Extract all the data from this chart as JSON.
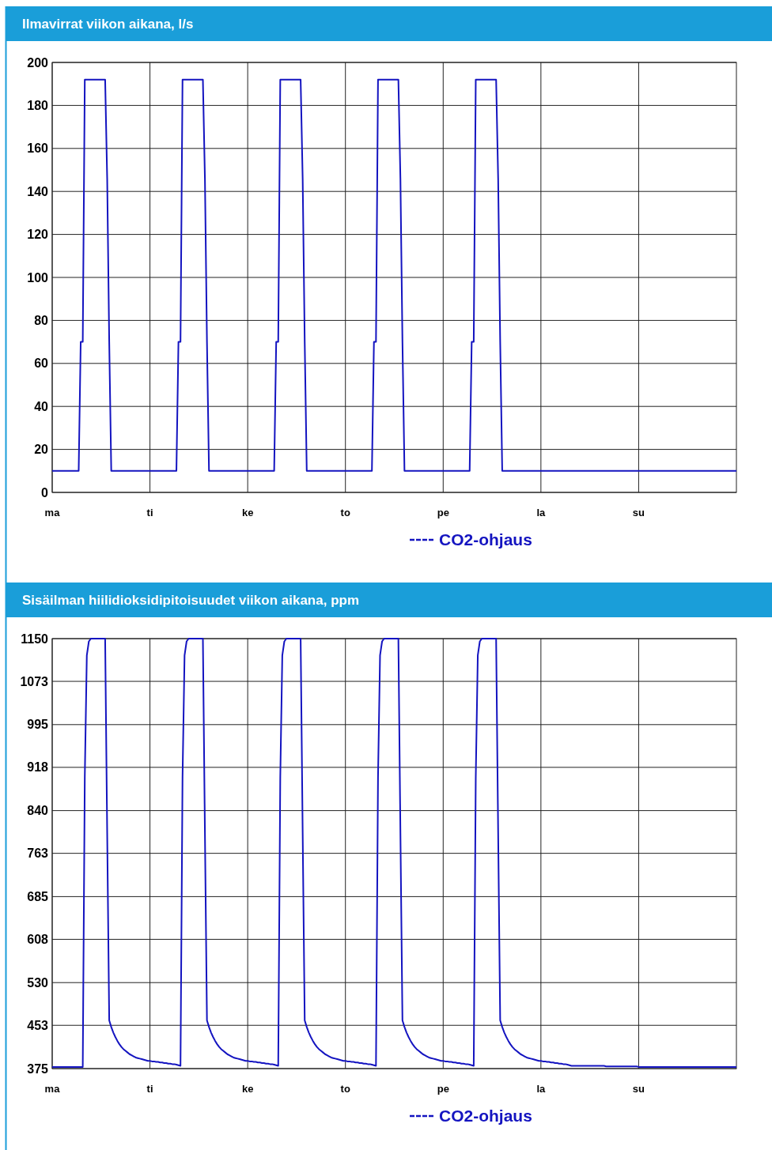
{
  "chart_data": [
    {
      "type": "line",
      "title": "Ilmavirrat viikon aikana, l/s",
      "ylim": [
        0,
        200
      ],
      "yticks": [
        0,
        20,
        40,
        60,
        80,
        100,
        120,
        140,
        160,
        180,
        200
      ],
      "categories": [
        "ma",
        null,
        null,
        null,
        null,
        null,
        null,
        null,
        null,
        null,
        null,
        null,
        null,
        null,
        null,
        null,
        null,
        null,
        null,
        null,
        null,
        null,
        null,
        null,
        null,
        null,
        null,
        null,
        null,
        null,
        null,
        null,
        null,
        null,
        null,
        null,
        null,
        null,
        null,
        null,
        null,
        null,
        null,
        null,
        null,
        null,
        null,
        null,
        "ti",
        null,
        null,
        null,
        null,
        null,
        null,
        null,
        null,
        null,
        null,
        null,
        null,
        null,
        null,
        null,
        null,
        null,
        null,
        null,
        null,
        null,
        null,
        null,
        null,
        null,
        null,
        null,
        null,
        null,
        null,
        null,
        null,
        null,
        null,
        null,
        null,
        null,
        null,
        null,
        null,
        null,
        null,
        null,
        null,
        null,
        null,
        null,
        "ke",
        null,
        null,
        null,
        null,
        null,
        null,
        null,
        null,
        null,
        null,
        null,
        null,
        null,
        null,
        null,
        null,
        null,
        null,
        null,
        null,
        null,
        null,
        null,
        null,
        null,
        null,
        null,
        null,
        null,
        null,
        null,
        null,
        null,
        null,
        null,
        null,
        null,
        null,
        null,
        null,
        null,
        null,
        null,
        null,
        null,
        null,
        null,
        "to",
        null,
        null,
        null,
        null,
        null,
        null,
        null,
        null,
        null,
        null,
        null,
        null,
        null,
        null,
        null,
        null,
        null,
        null,
        null,
        null,
        null,
        null,
        null,
        null,
        null,
        null,
        null,
        null,
        null,
        null,
        null,
        null,
        null,
        null,
        null,
        null,
        null,
        null,
        null,
        null,
        null,
        null,
        null,
        null,
        null,
        null,
        null,
        "pe",
        null,
        null,
        null,
        null,
        null,
        null,
        null,
        null,
        null,
        null,
        null,
        null,
        null,
        null,
        null,
        null,
        null,
        null,
        null,
        null,
        null,
        null,
        null,
        null,
        null,
        null,
        null,
        null,
        null,
        null,
        null,
        null,
        null,
        null,
        null,
        null,
        null,
        null,
        null,
        null,
        null,
        null,
        null,
        null,
        null,
        null,
        null,
        "la",
        null,
        null,
        null,
        null,
        null,
        null,
        null,
        null,
        null,
        null,
        null,
        null,
        null,
        null,
        null,
        null,
        null,
        null,
        null,
        null,
        null,
        null,
        null,
        null,
        null,
        null,
        null,
        null,
        null,
        null,
        null,
        null,
        null,
        null,
        null,
        null,
        null,
        null,
        null,
        null,
        null,
        null,
        null,
        null,
        null,
        null,
        null,
        "su",
        null,
        null,
        null,
        null,
        null,
        null,
        null,
        null,
        null,
        null,
        null,
        null,
        null,
        null,
        null,
        null,
        null,
        null,
        null,
        null,
        null,
        null,
        null,
        null,
        null,
        null,
        null,
        null,
        null,
        null,
        null,
        null,
        null,
        null,
        null,
        null,
        null,
        null,
        null,
        null,
        null,
        null,
        null,
        null,
        null,
        null,
        null,
        null
      ],
      "grid": true,
      "legend": "bottom",
      "line_style": "solid",
      "marker": "none",
      "series": [
        {
          "name": "CO2-ohjaus",
          "color": "#1414c0",
          "values": [
            10,
            10,
            10,
            10,
            10,
            10,
            10,
            10,
            10,
            10,
            10,
            10,
            10,
            10,
            70,
            70,
            192,
            192,
            192,
            192,
            192,
            192,
            192,
            192,
            192,
            192,
            192,
            146,
            70,
            10,
            10,
            10,
            10,
            10,
            10,
            10,
            10,
            10,
            10,
            10,
            10,
            10,
            10,
            10,
            10,
            10,
            10,
            10,
            10,
            10,
            10,
            10,
            10,
            10,
            10,
            10,
            10,
            10,
            10,
            10,
            10,
            10,
            70,
            70,
            192,
            192,
            192,
            192,
            192,
            192,
            192,
            192,
            192,
            192,
            192,
            146,
            70,
            10,
            10,
            10,
            10,
            10,
            10,
            10,
            10,
            10,
            10,
            10,
            10,
            10,
            10,
            10,
            10,
            10,
            10,
            10,
            10,
            10,
            10,
            10,
            10,
            10,
            10,
            10,
            10,
            10,
            10,
            10,
            10,
            10,
            70,
            70,
            192,
            192,
            192,
            192,
            192,
            192,
            192,
            192,
            192,
            192,
            192,
            146,
            70,
            10,
            10,
            10,
            10,
            10,
            10,
            10,
            10,
            10,
            10,
            10,
            10,
            10,
            10,
            10,
            10,
            10,
            10,
            10,
            10,
            10,
            10,
            10,
            10,
            10,
            10,
            10,
            10,
            10,
            10,
            10,
            10,
            10,
            70,
            70,
            192,
            192,
            192,
            192,
            192,
            192,
            192,
            192,
            192,
            192,
            192,
            146,
            70,
            10,
            10,
            10,
            10,
            10,
            10,
            10,
            10,
            10,
            10,
            10,
            10,
            10,
            10,
            10,
            10,
            10,
            10,
            10,
            10,
            10,
            10,
            10,
            10,
            10,
            10,
            10,
            10,
            10,
            10,
            10,
            10,
            10,
            70,
            70,
            192,
            192,
            192,
            192,
            192,
            192,
            192,
            192,
            192,
            192,
            192,
            146,
            70,
            10,
            10,
            10,
            10,
            10,
            10,
            10,
            10,
            10,
            10,
            10,
            10,
            10,
            10,
            10,
            10,
            10,
            10,
            10,
            10,
            10,
            10,
            10,
            10,
            10,
            10,
            10,
            10,
            10,
            10,
            10,
            10,
            10,
            10,
            10,
            10,
            10,
            10,
            10,
            10,
            10,
            10,
            10,
            10,
            10,
            10,
            10,
            10,
            10,
            10,
            10,
            10,
            10,
            10,
            10,
            10,
            10,
            10,
            10,
            10,
            10,
            10,
            10,
            10,
            10,
            10,
            10,
            10,
            10,
            10,
            10,
            10,
            10,
            10,
            10,
            10,
            10,
            10,
            10,
            10,
            10,
            10,
            10,
            10,
            10,
            10,
            10,
            10,
            10,
            10,
            10,
            10,
            10,
            10,
            10,
            10,
            10,
            10,
            10,
            10,
            10,
            10,
            10,
            10,
            10,
            10,
            10,
            10,
            10,
            10,
            10,
            10,
            10,
            10,
            10,
            10
          ]
        }
      ]
    },
    {
      "type": "line",
      "title": "Sisäilman hiilidioksidipitoisuudet viikon aikana, ppm",
      "ylim": [
        375,
        1150
      ],
      "yticks": [
        375,
        453,
        530,
        608,
        685,
        763,
        840,
        918,
        995,
        1073,
        1150
      ],
      "categories": [
        "ma",
        null,
        null,
        null,
        null,
        null,
        null,
        null,
        null,
        null,
        null,
        null,
        null,
        null,
        null,
        null,
        null,
        null,
        null,
        null,
        null,
        null,
        null,
        null,
        null,
        null,
        null,
        null,
        null,
        null,
        null,
        null,
        null,
        null,
        null,
        null,
        null,
        null,
        null,
        null,
        null,
        null,
        null,
        null,
        null,
        null,
        null,
        null,
        "ti",
        null,
        null,
        null,
        null,
        null,
        null,
        null,
        null,
        null,
        null,
        null,
        null,
        null,
        null,
        null,
        null,
        null,
        null,
        null,
        null,
        null,
        null,
        null,
        null,
        null,
        null,
        null,
        null,
        null,
        null,
        null,
        null,
        null,
        null,
        null,
        null,
        null,
        null,
        null,
        null,
        null,
        null,
        null,
        null,
        null,
        null,
        null,
        "ke",
        null,
        null,
        null,
        null,
        null,
        null,
        null,
        null,
        null,
        null,
        null,
        null,
        null,
        null,
        null,
        null,
        null,
        null,
        null,
        null,
        null,
        null,
        null,
        null,
        null,
        null,
        null,
        null,
        null,
        null,
        null,
        null,
        null,
        null,
        null,
        null,
        null,
        null,
        null,
        null,
        null,
        null,
        null,
        null,
        null,
        null,
        null,
        "to",
        null,
        null,
        null,
        null,
        null,
        null,
        null,
        null,
        null,
        null,
        null,
        null,
        null,
        null,
        null,
        null,
        null,
        null,
        null,
        null,
        null,
        null,
        null,
        null,
        null,
        null,
        null,
        null,
        null,
        null,
        null,
        null,
        null,
        null,
        null,
        null,
        null,
        null,
        null,
        null,
        null,
        null,
        null,
        null,
        null,
        null,
        null,
        "pe",
        null,
        null,
        null,
        null,
        null,
        null,
        null,
        null,
        null,
        null,
        null,
        null,
        null,
        null,
        null,
        null,
        null,
        null,
        null,
        null,
        null,
        null,
        null,
        null,
        null,
        null,
        null,
        null,
        null,
        null,
        null,
        null,
        null,
        null,
        null,
        null,
        null,
        null,
        null,
        null,
        null,
        null,
        null,
        null,
        null,
        null,
        null,
        "la",
        null,
        null,
        null,
        null,
        null,
        null,
        null,
        null,
        null,
        null,
        null,
        null,
        null,
        null,
        null,
        null,
        null,
        null,
        null,
        null,
        null,
        null,
        null,
        null,
        null,
        null,
        null,
        null,
        null,
        null,
        null,
        null,
        null,
        null,
        null,
        null,
        null,
        null,
        null,
        null,
        null,
        null,
        null,
        null,
        null,
        null,
        null,
        "su",
        null,
        null,
        null,
        null,
        null,
        null,
        null,
        null,
        null,
        null,
        null,
        null,
        null,
        null,
        null,
        null,
        null,
        null,
        null,
        null,
        null,
        null,
        null,
        null,
        null,
        null,
        null,
        null,
        null,
        null,
        null,
        null,
        null,
        null,
        null,
        null,
        null,
        null,
        null,
        null,
        null,
        null,
        null,
        null,
        null,
        null,
        null,
        null
      ],
      "grid": true,
      "legend": "bottom",
      "line_style": "solid",
      "marker": "none",
      "series": [
        {
          "name": "CO2-ohjaus",
          "color": "#1414c0",
          "values": [
            378,
            378,
            378,
            378,
            378,
            378,
            378,
            378,
            378,
            378,
            378,
            378,
            378,
            378,
            378,
            378,
            900,
            1120,
            1145,
            1150,
            1150,
            1150,
            1150,
            1150,
            1150,
            1150,
            1150,
            800,
            462,
            450,
            440,
            432,
            425,
            419,
            414,
            410,
            407,
            404,
            401,
            399,
            397,
            395,
            394,
            393,
            392,
            391,
            390,
            389,
            389,
            388,
            388,
            387,
            387,
            386,
            386,
            385,
            385,
            384,
            384,
            383,
            383,
            382,
            381,
            380,
            900,
            1120,
            1145,
            1150,
            1150,
            1150,
            1150,
            1150,
            1150,
            1150,
            1150,
            800,
            462,
            450,
            440,
            432,
            425,
            419,
            414,
            410,
            407,
            404,
            401,
            399,
            397,
            395,
            394,
            393,
            392,
            391,
            390,
            389,
            389,
            388,
            388,
            387,
            387,
            386,
            386,
            385,
            385,
            384,
            384,
            383,
            383,
            382,
            381,
            380,
            900,
            1120,
            1145,
            1150,
            1150,
            1150,
            1150,
            1150,
            1150,
            1150,
            1150,
            800,
            462,
            450,
            440,
            432,
            425,
            419,
            414,
            410,
            407,
            404,
            401,
            399,
            397,
            395,
            394,
            393,
            392,
            391,
            390,
            389,
            389,
            388,
            388,
            387,
            387,
            386,
            386,
            385,
            385,
            384,
            384,
            383,
            383,
            382,
            381,
            380,
            900,
            1120,
            1145,
            1150,
            1150,
            1150,
            1150,
            1150,
            1150,
            1150,
            1150,
            800,
            462,
            450,
            440,
            432,
            425,
            419,
            414,
            410,
            407,
            404,
            401,
            399,
            397,
            395,
            394,
            393,
            392,
            391,
            390,
            389,
            389,
            388,
            388,
            387,
            387,
            386,
            386,
            385,
            385,
            384,
            384,
            383,
            383,
            382,
            381,
            380,
            900,
            1120,
            1145,
            1150,
            1150,
            1150,
            1150,
            1150,
            1150,
            1150,
            1150,
            800,
            462,
            450,
            440,
            432,
            425,
            419,
            414,
            410,
            407,
            404,
            401,
            399,
            397,
            395,
            394,
            393,
            392,
            391,
            390,
            389,
            389,
            388,
            388,
            387,
            387,
            386,
            386,
            385,
            385,
            384,
            384,
            383,
            383,
            382,
            381,
            380,
            380,
            380,
            380,
            380,
            380,
            380,
            380,
            380,
            380,
            380,
            380,
            380,
            380,
            380,
            380,
            380,
            379,
            379,
            379,
            379,
            379,
            379,
            379,
            379,
            379,
            379,
            379,
            379,
            379,
            379,
            379,
            379,
            378,
            378,
            378,
            378,
            378,
            378,
            378,
            378,
            378,
            378,
            378,
            378,
            378,
            378,
            378,
            378,
            378,
            378,
            378,
            378,
            378,
            378,
            378,
            378,
            378,
            378,
            378,
            378,
            378,
            378,
            378,
            378,
            378,
            378,
            378,
            378,
            378,
            378,
            378,
            378,
            378,
            378,
            378,
            378,
            378,
            378,
            378,
            378,
            378
          ]
        }
      ]
    }
  ]
}
